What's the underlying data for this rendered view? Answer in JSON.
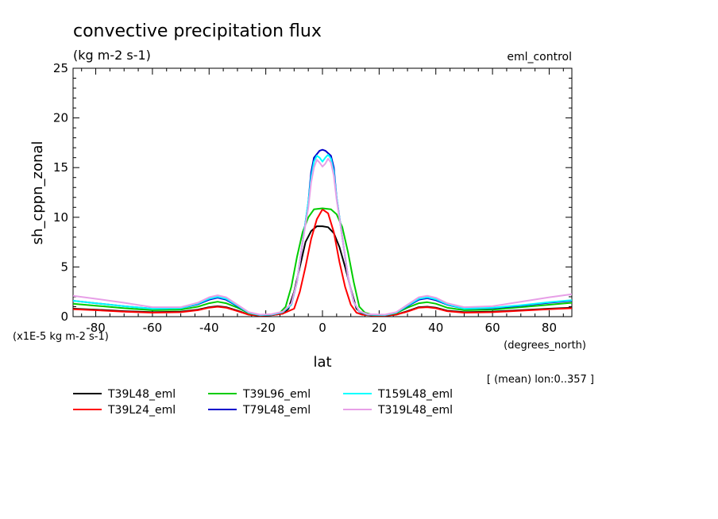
{
  "chart_data": {
    "type": "line",
    "title": "convective precipitation flux",
    "units": "(kg m-2 s-1)",
    "subtitle_right": "eml_control",
    "ylabel": "sh_cppn_zonal",
    "xlabel": "lat",
    "x_units": "(degrees_north)",
    "y_scale_note": "(x1E-5 kg m-2 s-1)",
    "footnote": "[ (mean) lon:0..357 ]",
    "xlim": [
      -88,
      88
    ],
    "ylim": [
      0,
      25
    ],
    "x_ticks": [
      -80,
      -60,
      -40,
      -20,
      0,
      20,
      40,
      60,
      80
    ],
    "y_ticks": [
      0,
      5,
      10,
      15,
      20,
      25
    ],
    "grid": false,
    "legend_position": "bottom",
    "series": [
      {
        "name": "T39L48_eml",
        "color": "#000000",
        "points": [
          [
            -88,
            0.8
          ],
          [
            -80,
            0.7
          ],
          [
            -70,
            0.55
          ],
          [
            -60,
            0.45
          ],
          [
            -50,
            0.5
          ],
          [
            -44,
            0.7
          ],
          [
            -40,
            0.95
          ],
          [
            -37,
            1.05
          ],
          [
            -34,
            0.95
          ],
          [
            -30,
            0.6
          ],
          [
            -26,
            0.2
          ],
          [
            -22,
            0.1
          ],
          [
            -18,
            0.15
          ],
          [
            -14,
            0.3
          ],
          [
            -12,
            0.8
          ],
          [
            -10,
            2.5
          ],
          [
            -8,
            5
          ],
          [
            -6,
            7.5
          ],
          [
            -4,
            8.6
          ],
          [
            -2,
            9.1
          ],
          [
            0,
            9.1
          ],
          [
            2,
            9.0
          ],
          [
            4,
            8.4
          ],
          [
            6,
            7
          ],
          [
            8,
            5
          ],
          [
            10,
            2.8
          ],
          [
            12,
            0.8
          ],
          [
            14,
            0.3
          ],
          [
            18,
            0.1
          ],
          [
            22,
            0.1
          ],
          [
            26,
            0.2
          ],
          [
            30,
            0.55
          ],
          [
            34,
            0.95
          ],
          [
            37,
            1.0
          ],
          [
            40,
            0.9
          ],
          [
            44,
            0.6
          ],
          [
            50,
            0.45
          ],
          [
            60,
            0.5
          ],
          [
            70,
            0.65
          ],
          [
            80,
            0.8
          ],
          [
            88,
            0.9
          ]
        ]
      },
      {
        "name": "T39L24_eml",
        "color": "#ff0000",
        "points": [
          [
            -88,
            0.75
          ],
          [
            -80,
            0.65
          ],
          [
            -70,
            0.5
          ],
          [
            -60,
            0.4
          ],
          [
            -50,
            0.45
          ],
          [
            -44,
            0.65
          ],
          [
            -40,
            0.9
          ],
          [
            -37,
            1.0
          ],
          [
            -34,
            0.9
          ],
          [
            -30,
            0.55
          ],
          [
            -26,
            0.2
          ],
          [
            -22,
            0.1
          ],
          [
            -18,
            0.15
          ],
          [
            -14,
            0.3
          ],
          [
            -10,
            0.8
          ],
          [
            -8,
            2.5
          ],
          [
            -6,
            5
          ],
          [
            -4,
            7.8
          ],
          [
            -2,
            9.8
          ],
          [
            0,
            10.8
          ],
          [
            2,
            10.4
          ],
          [
            4,
            8.5
          ],
          [
            6,
            5.5
          ],
          [
            8,
            3
          ],
          [
            10,
            1.2
          ],
          [
            12,
            0.4
          ],
          [
            14,
            0.2
          ],
          [
            18,
            0.1
          ],
          [
            22,
            0.1
          ],
          [
            26,
            0.2
          ],
          [
            30,
            0.5
          ],
          [
            34,
            0.9
          ],
          [
            37,
            0.95
          ],
          [
            40,
            0.85
          ],
          [
            44,
            0.55
          ],
          [
            50,
            0.4
          ],
          [
            60,
            0.45
          ],
          [
            70,
            0.6
          ],
          [
            80,
            0.75
          ],
          [
            88,
            0.85
          ]
        ]
      },
      {
        "name": "T39L96_eml",
        "color": "#00cc00",
        "points": [
          [
            -88,
            1.3
          ],
          [
            -80,
            1.1
          ],
          [
            -70,
            0.85
          ],
          [
            -60,
            0.65
          ],
          [
            -50,
            0.7
          ],
          [
            -44,
            1.0
          ],
          [
            -40,
            1.35
          ],
          [
            -37,
            1.5
          ],
          [
            -34,
            1.35
          ],
          [
            -30,
            0.9
          ],
          [
            -26,
            0.35
          ],
          [
            -22,
            0.15
          ],
          [
            -18,
            0.2
          ],
          [
            -15,
            0.4
          ],
          [
            -13,
            1
          ],
          [
            -11,
            3
          ],
          [
            -9,
            6
          ],
          [
            -7,
            8.5
          ],
          [
            -5,
            10
          ],
          [
            -3,
            10.8
          ],
          [
            0,
            10.9
          ],
          [
            3,
            10.8
          ],
          [
            5,
            10.3
          ],
          [
            7,
            9
          ],
          [
            9,
            6.5
          ],
          [
            11,
            3.5
          ],
          [
            13,
            1
          ],
          [
            15,
            0.4
          ],
          [
            18,
            0.15
          ],
          [
            22,
            0.15
          ],
          [
            26,
            0.35
          ],
          [
            30,
            0.9
          ],
          [
            34,
            1.35
          ],
          [
            37,
            1.45
          ],
          [
            40,
            1.3
          ],
          [
            44,
            0.9
          ],
          [
            50,
            0.65
          ],
          [
            60,
            0.7
          ],
          [
            70,
            0.95
          ],
          [
            80,
            1.2
          ],
          [
            88,
            1.4
          ]
        ]
      },
      {
        "name": "T79L48_eml",
        "color": "#0000cc",
        "points": [
          [
            -88,
            1.6
          ],
          [
            -80,
            1.35
          ],
          [
            -70,
            1.05
          ],
          [
            -60,
            0.8
          ],
          [
            -50,
            0.85
          ],
          [
            -44,
            1.25
          ],
          [
            -40,
            1.7
          ],
          [
            -37,
            1.9
          ],
          [
            -34,
            1.7
          ],
          [
            -30,
            1.05
          ],
          [
            -26,
            0.4
          ],
          [
            -22,
            0.15
          ],
          [
            -18,
            0.2
          ],
          [
            -14,
            0.45
          ],
          [
            -11,
            1.2
          ],
          [
            -9,
            3.5
          ],
          [
            -7,
            7.5
          ],
          [
            -5,
            11.5
          ],
          [
            -4,
            14.5
          ],
          [
            -3,
            16
          ],
          [
            -1,
            16.7
          ],
          [
            0,
            16.8
          ],
          [
            1,
            16.7
          ],
          [
            3,
            16.2
          ],
          [
            4,
            15
          ],
          [
            5,
            12
          ],
          [
            7,
            8
          ],
          [
            9,
            4
          ],
          [
            11,
            1.5
          ],
          [
            13,
            0.5
          ],
          [
            16,
            0.2
          ],
          [
            22,
            0.15
          ],
          [
            26,
            0.4
          ],
          [
            30,
            1.05
          ],
          [
            34,
            1.7
          ],
          [
            37,
            1.85
          ],
          [
            40,
            1.65
          ],
          [
            44,
            1.2
          ],
          [
            50,
            0.8
          ],
          [
            60,
            0.85
          ],
          [
            70,
            1.1
          ],
          [
            80,
            1.4
          ],
          [
            88,
            1.6
          ]
        ]
      },
      {
        "name": "T159L48_eml",
        "color": "#00ffff",
        "points": [
          [
            -88,
            1.6
          ],
          [
            -80,
            1.35
          ],
          [
            -70,
            1.05
          ],
          [
            -60,
            0.8
          ],
          [
            -50,
            0.85
          ],
          [
            -44,
            1.3
          ],
          [
            -40,
            1.8
          ],
          [
            -37,
            2.0
          ],
          [
            -34,
            1.8
          ],
          [
            -30,
            1.1
          ],
          [
            -26,
            0.4
          ],
          [
            -22,
            0.15
          ],
          [
            -18,
            0.2
          ],
          [
            -14,
            0.45
          ],
          [
            -11,
            1.2
          ],
          [
            -9,
            3.5
          ],
          [
            -7,
            7.5
          ],
          [
            -5,
            11.5
          ],
          [
            -4,
            14
          ],
          [
            -3,
            15.6
          ],
          [
            -2,
            16.2
          ],
          [
            -1,
            16.0
          ],
          [
            0,
            15.6
          ],
          [
            1,
            16.0
          ],
          [
            2,
            16.3
          ],
          [
            3,
            15.9
          ],
          [
            4,
            14.6
          ],
          [
            5,
            12
          ],
          [
            7,
            8
          ],
          [
            9,
            4
          ],
          [
            11,
            1.5
          ],
          [
            13,
            0.5
          ],
          [
            16,
            0.2
          ],
          [
            22,
            0.15
          ],
          [
            26,
            0.4
          ],
          [
            30,
            1.1
          ],
          [
            34,
            1.8
          ],
          [
            37,
            1.95
          ],
          [
            40,
            1.75
          ],
          [
            44,
            1.25
          ],
          [
            50,
            0.8
          ],
          [
            60,
            0.9
          ],
          [
            70,
            1.15
          ],
          [
            80,
            1.45
          ],
          [
            88,
            1.65
          ]
        ]
      },
      {
        "name": "T319L48_eml",
        "color": "#e79fe7",
        "points": [
          [
            -88,
            2.1
          ],
          [
            -80,
            1.8
          ],
          [
            -70,
            1.4
          ],
          [
            -60,
            0.95
          ],
          [
            -50,
            0.95
          ],
          [
            -44,
            1.4
          ],
          [
            -40,
            1.95
          ],
          [
            -37,
            2.15
          ],
          [
            -34,
            1.95
          ],
          [
            -30,
            1.2
          ],
          [
            -26,
            0.45
          ],
          [
            -22,
            0.2
          ],
          [
            -18,
            0.25
          ],
          [
            -14,
            0.5
          ],
          [
            -11,
            1.3
          ],
          [
            -9,
            3.5
          ],
          [
            -7,
            7.5
          ],
          [
            -5,
            11
          ],
          [
            -4,
            13.5
          ],
          [
            -3,
            15
          ],
          [
            -2,
            15.8
          ],
          [
            -1,
            15.5
          ],
          [
            0,
            15.1
          ],
          [
            1,
            15.4
          ],
          [
            2,
            15.9
          ],
          [
            3,
            15.5
          ],
          [
            4,
            14.2
          ],
          [
            5,
            11.8
          ],
          [
            7,
            8
          ],
          [
            9,
            4
          ],
          [
            11,
            1.5
          ],
          [
            13,
            0.55
          ],
          [
            16,
            0.25
          ],
          [
            22,
            0.2
          ],
          [
            26,
            0.45
          ],
          [
            30,
            1.2
          ],
          [
            34,
            1.95
          ],
          [
            37,
            2.1
          ],
          [
            40,
            1.9
          ],
          [
            44,
            1.35
          ],
          [
            50,
            0.95
          ],
          [
            60,
            1.05
          ],
          [
            70,
            1.5
          ],
          [
            80,
            1.95
          ],
          [
            88,
            2.25
          ]
        ]
      }
    ]
  }
}
